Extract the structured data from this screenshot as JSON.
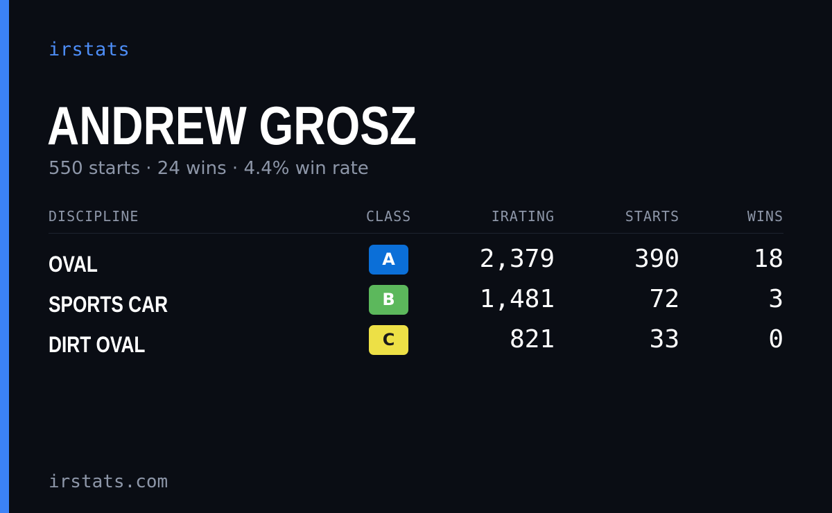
{
  "brand": "irstats",
  "driver": {
    "name": "ANDREW GROSZ",
    "summary": "550 starts · 24 wins · 4.4% win rate"
  },
  "table": {
    "headers": {
      "discipline": "DISCIPLINE",
      "class": "CLASS",
      "irating": "IRATING",
      "starts": "STARTS",
      "wins": "WINS"
    },
    "rows": [
      {
        "discipline": "OVAL",
        "class": "A",
        "irating": "2,379",
        "starts": "390",
        "wins": "18"
      },
      {
        "discipline": "SPORTS CAR",
        "class": "B",
        "irating": "1,481",
        "starts": "72",
        "wins": "3"
      },
      {
        "discipline": "DIRT OVAL",
        "class": "C",
        "irating": "821",
        "starts": "33",
        "wins": "0"
      }
    ]
  },
  "class_colors": {
    "A": {
      "background": "#0b6fd8",
      "text": "#ffffff"
    },
    "B": {
      "background": "#5cb85c",
      "text": "#ffffff"
    },
    "C": {
      "background": "#ede046",
      "text": "#1a1a1a"
    }
  },
  "colors": {
    "accent": "#3b82f6",
    "background": "#0a0d14",
    "muted_text": "#8d96a8"
  },
  "footer": "irstats.com"
}
